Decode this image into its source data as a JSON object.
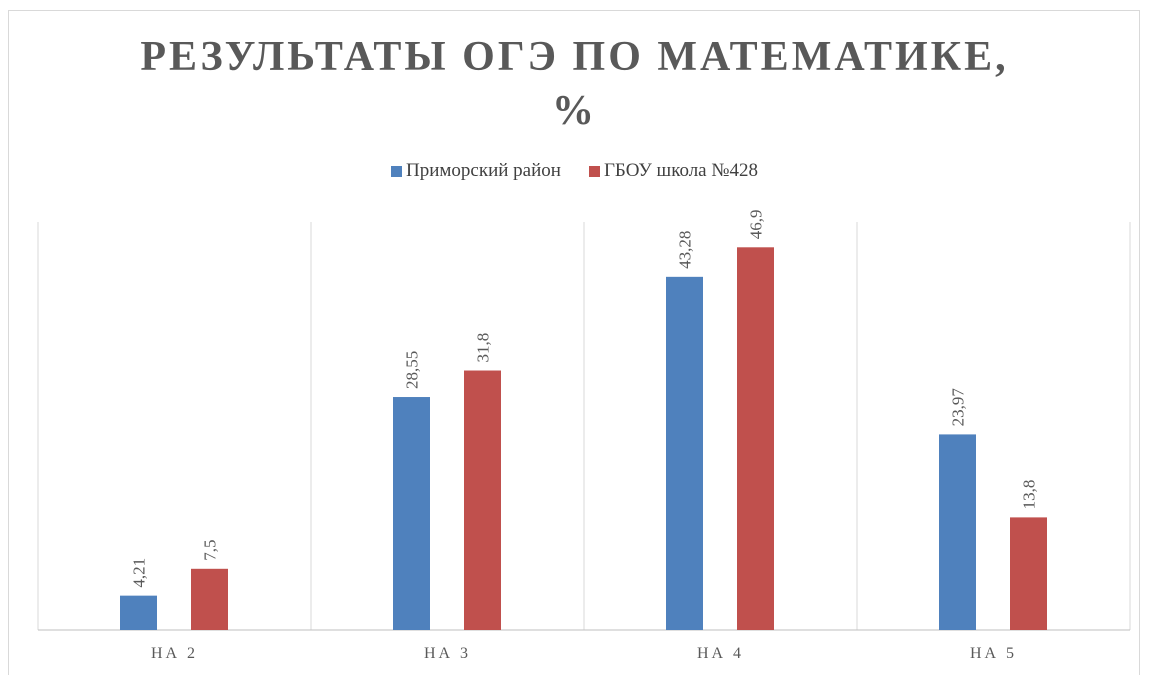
{
  "chart_data": {
    "type": "bar",
    "title": "РЕЗУЛЬТАТЫ ОГЭ ПО МАТЕМАТИКЕ,\n%",
    "categories": [
      "НА 2",
      "НА 3",
      "НА 4",
      "НА 5"
    ],
    "series": [
      {
        "name": "Приморский район",
        "color": "#4f81bd",
        "values": [
          4.21,
          28.55,
          43.28,
          23.97
        ],
        "value_labels": [
          "4,21",
          "28,55",
          "43,28",
          "23,97"
        ]
      },
      {
        "name": "ГБОУ школа №428",
        "color": "#c0504d",
        "values": [
          7.5,
          31.8,
          46.9,
          13.8
        ],
        "value_labels": [
          "7,5",
          "31,8",
          "46,9",
          "13,8"
        ]
      }
    ],
    "ylim": [
      0,
      50
    ],
    "legend": "top"
  }
}
